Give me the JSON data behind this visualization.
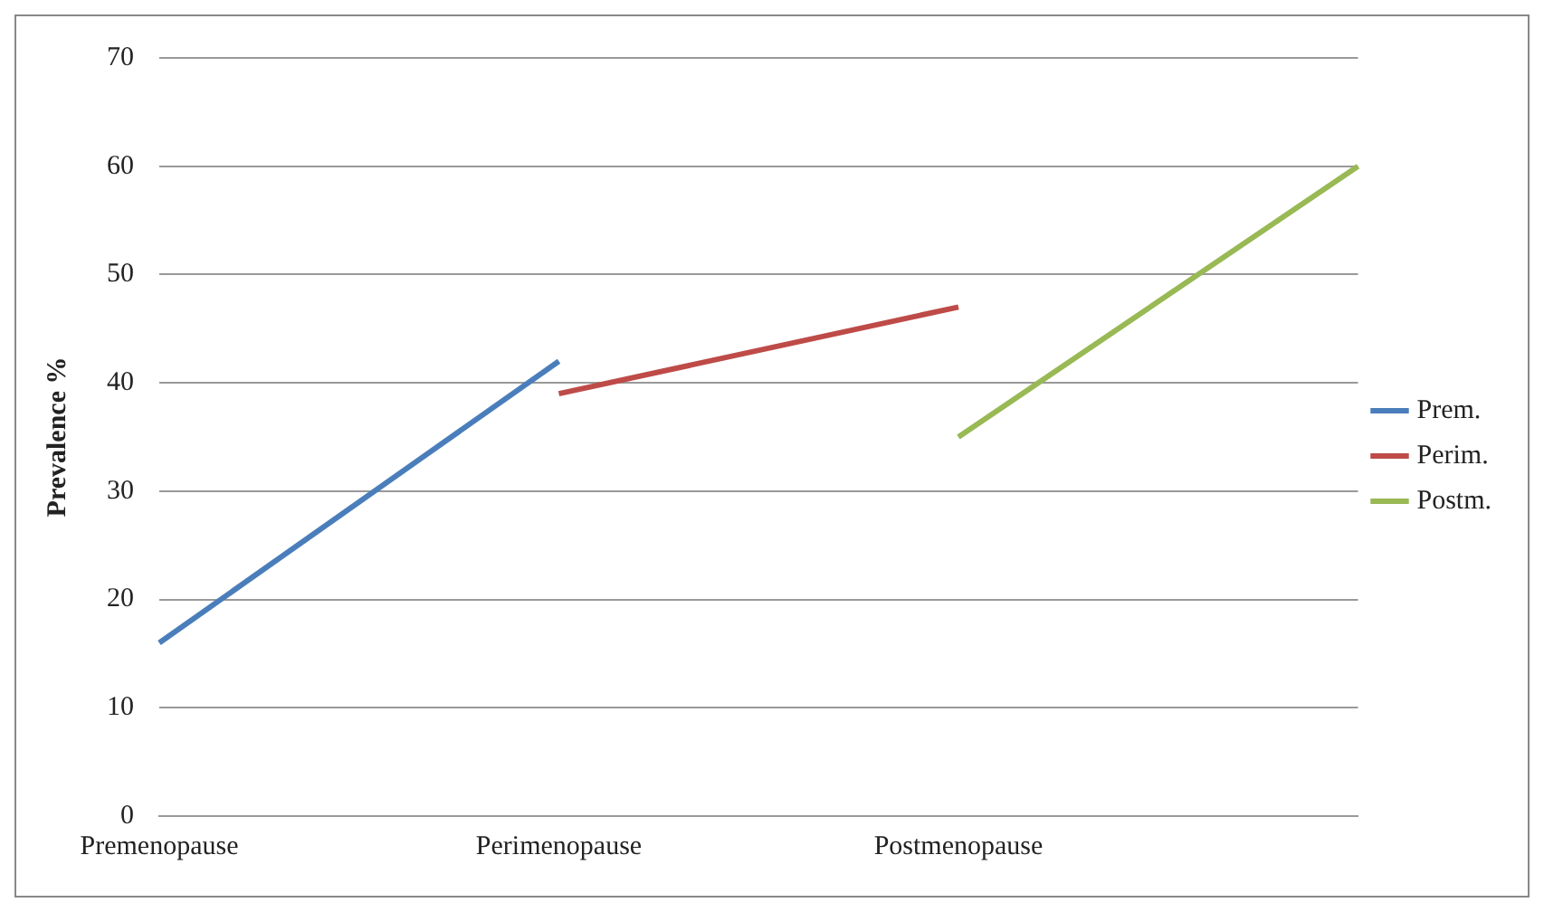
{
  "chart_data": {
    "type": "line",
    "ylabel": "Prevalence %",
    "categories": [
      "Premenopause",
      "Perimenopause",
      "Postmenopause",
      null
    ],
    "series": [
      {
        "name": "Prem.",
        "color": "#4a7ebb",
        "values": [
          16,
          42,
          null,
          null
        ]
      },
      {
        "name": "Perim.",
        "color": "#be4b48",
        "values": [
          null,
          39,
          47,
          null
        ]
      },
      {
        "name": "Postm.",
        "color": "#98b954",
        "values": [
          null,
          null,
          35,
          60
        ]
      }
    ],
    "ylim": [
      0,
      70
    ],
    "yticks": [
      0,
      10,
      20,
      30,
      40,
      50,
      60,
      70
    ],
    "grid": "y",
    "legend": "right",
    "marker": "none",
    "line_style": "solid"
  }
}
